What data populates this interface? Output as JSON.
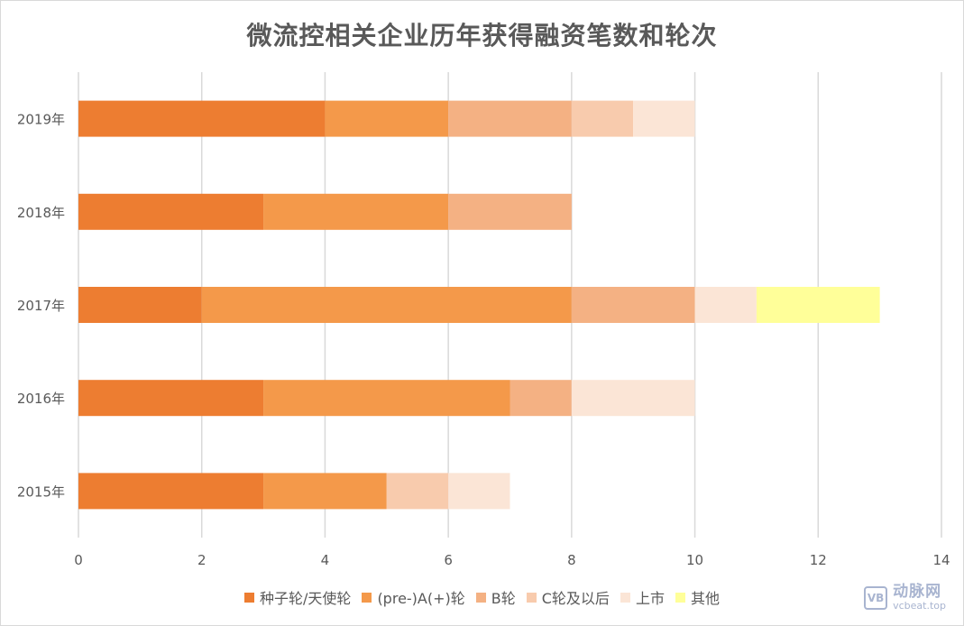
{
  "chart_data": {
    "type": "bar",
    "orientation": "horizontal",
    "stacked": true,
    "title": "微流控相关企业历年获得融资笔数和轮次",
    "categories": [
      "2019年",
      "2018年",
      "2017年",
      "2016年",
      "2015年"
    ],
    "xlim": [
      0,
      14
    ],
    "x_ticks": [
      0,
      2,
      4,
      6,
      8,
      10,
      12,
      14
    ],
    "grid": true,
    "legend_position": "bottom",
    "series": [
      {
        "name": "种子轮/天使轮",
        "color": "#ed7d31",
        "values": [
          4,
          3,
          2,
          3,
          3
        ]
      },
      {
        "name": "(pre-)A(+)轮",
        "color": "#f4994a",
        "values": [
          2,
          3,
          6,
          4,
          2
        ]
      },
      {
        "name": "B轮",
        "color": "#f4b183",
        "values": [
          2,
          2,
          2,
          1,
          0
        ]
      },
      {
        "name": "C轮及以后",
        "color": "#f8cbad",
        "values": [
          1,
          0,
          0,
          0,
          1
        ]
      },
      {
        "name": "上市",
        "color": "#fbe5d6",
        "values": [
          1,
          0,
          1,
          2,
          1
        ]
      },
      {
        "name": "其他",
        "color": "#ffff99",
        "values": [
          0,
          0,
          2,
          0,
          0
        ]
      }
    ]
  },
  "watermark": {
    "logo": "VB",
    "name": "动脉网",
    "url": "vcbeat.top"
  }
}
